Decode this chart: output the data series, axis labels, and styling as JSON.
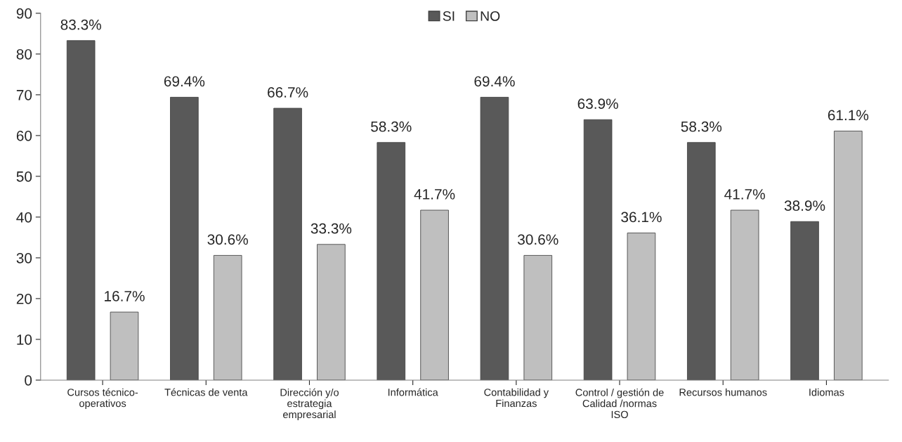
{
  "chart_data": {
    "type": "bar",
    "categories": [
      "Cursos técnico-\noperativos",
      "Técnicas de venta",
      "Dirección y/o\nestrategia\nempresarial",
      "Informática",
      "Contabilidad y\nFinanzas",
      "Control / gestión de\nCalidad /normas\nISO",
      "Recursos humanos",
      "Idiomas"
    ],
    "series": [
      {
        "name": "SI",
        "color": "#595959",
        "values": [
          83.3,
          69.4,
          66.7,
          58.3,
          69.4,
          63.9,
          58.3,
          38.9
        ],
        "value_labels": [
          "83.3%",
          "69.4%",
          "66.7%",
          "58.3%",
          "69.4%",
          "63.9%",
          "58.3%",
          "38.9%"
        ]
      },
      {
        "name": "NO",
        "color": "#bfbfbf",
        "values": [
          16.7,
          30.6,
          33.3,
          41.7,
          30.6,
          36.1,
          41.7,
          61.1
        ],
        "value_labels": [
          "16.7%",
          "30.6%",
          "33.3%",
          "41.7%",
          "30.6%",
          "36.1%",
          "41.7%",
          "61.1%"
        ]
      }
    ],
    "ylim": [
      0,
      90
    ],
    "yticks": [
      0,
      10,
      20,
      30,
      40,
      50,
      60,
      70,
      80,
      90
    ],
    "grid": false,
    "legend": "top"
  }
}
